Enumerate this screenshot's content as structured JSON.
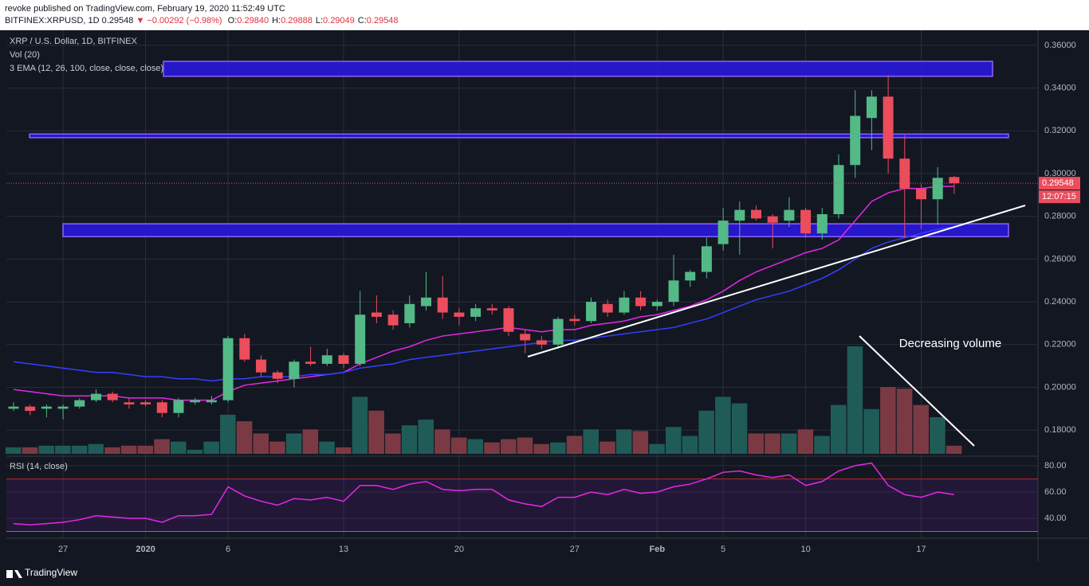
{
  "header": {
    "line1": "revoke published on TradingView.com, February 19, 2020 11:52:49 UTC",
    "symbol": "BITFINEX:XRPUSD, 1D",
    "last": "0.29548",
    "change": "▼ −0.00292 (−0.98%)",
    "ohlc": [
      {
        "key": "O:",
        "value": "0.29840"
      },
      {
        "key": "H:",
        "value": "0.29888"
      },
      {
        "key": "L:",
        "value": "0.29049"
      },
      {
        "key": "C:",
        "value": "0.29548"
      }
    ]
  },
  "chart_data": [
    {
      "type": "candlestick",
      "title": "XRP / U.S. Dollar, 1D, BITFINEX",
      "legend": [
        "Vol (20)",
        "3 EMA (12, 26, 100, close, close, close)"
      ],
      "categories": [
        null,
        null,
        null,
        "27",
        null,
        null,
        null,
        null,
        "2020",
        null,
        null,
        null,
        null,
        "6",
        null,
        null,
        null,
        null,
        null,
        null,
        "13",
        null,
        null,
        null,
        null,
        null,
        null,
        "20",
        null,
        null,
        null,
        null,
        null,
        null,
        "27",
        null,
        null,
        null,
        null,
        "Feb",
        null,
        null,
        null,
        "5",
        null,
        null,
        null,
        null,
        "10",
        null,
        null,
        null,
        null,
        null,
        null,
        "17",
        null,
        null
      ],
      "open": [
        0.19,
        0.191,
        0.19,
        0.19,
        0.191,
        0.194,
        0.197,
        0.193,
        0.193,
        0.193,
        0.188,
        0.193,
        0.193,
        0.194,
        0.223,
        0.213,
        0.207,
        0.204,
        0.212,
        0.211,
        0.215,
        0.211,
        0.235,
        0.234,
        0.23,
        0.238,
        0.242,
        0.235,
        0.233,
        0.237,
        0.237,
        0.225,
        0.222,
        0.22,
        0.232,
        0.231,
        0.239,
        0.235,
        0.242,
        0.238,
        0.24,
        0.25,
        0.254,
        0.267,
        0.278,
        0.283,
        0.28,
        0.278,
        0.283,
        0.272,
        0.281,
        0.304,
        0.326,
        0.336,
        0.307,
        0.293,
        0.288,
        0.2984
      ],
      "high": [
        0.193,
        0.192,
        0.192,
        0.192,
        0.195,
        0.199,
        0.198,
        0.195,
        0.194,
        0.194,
        0.195,
        0.195,
        0.196,
        0.224,
        0.225,
        0.215,
        0.208,
        0.213,
        0.219,
        0.218,
        0.216,
        0.245,
        0.243,
        0.236,
        0.243,
        0.254,
        0.252,
        0.237,
        0.239,
        0.239,
        0.238,
        0.227,
        0.224,
        0.233,
        0.234,
        0.242,
        0.241,
        0.245,
        0.245,
        0.241,
        0.262,
        0.255,
        0.27,
        0.284,
        0.287,
        0.285,
        0.281,
        0.289,
        0.284,
        0.284,
        0.309,
        0.339,
        0.339,
        0.346,
        0.318,
        0.295,
        0.303,
        0.29888
      ],
      "low": [
        0.189,
        0.187,
        0.186,
        0.185,
        0.19,
        0.193,
        0.193,
        0.19,
        0.191,
        0.186,
        0.186,
        0.192,
        0.192,
        0.193,
        0.212,
        0.205,
        0.202,
        0.2,
        0.21,
        0.21,
        0.209,
        0.21,
        0.23,
        0.227,
        0.228,
        0.236,
        0.232,
        0.229,
        0.231,
        0.234,
        0.224,
        0.216,
        0.218,
        0.218,
        0.229,
        0.23,
        0.233,
        0.234,
        0.236,
        0.236,
        0.238,
        0.247,
        0.251,
        0.264,
        0.262,
        0.278,
        0.265,
        0.275,
        0.27,
        0.269,
        0.279,
        0.298,
        0.311,
        0.3,
        0.27,
        0.274,
        0.276,
        0.29049
      ],
      "close": [
        0.191,
        0.189,
        0.191,
        0.191,
        0.194,
        0.197,
        0.194,
        0.192,
        0.192,
        0.188,
        0.194,
        0.194,
        0.194,
        0.223,
        0.213,
        0.207,
        0.204,
        0.212,
        0.211,
        0.215,
        0.211,
        0.234,
        0.233,
        0.229,
        0.239,
        0.242,
        0.235,
        0.233,
        0.237,
        0.236,
        0.226,
        0.222,
        0.22,
        0.232,
        0.231,
        0.24,
        0.235,
        0.242,
        0.238,
        0.24,
        0.25,
        0.254,
        0.266,
        0.278,
        0.283,
        0.279,
        0.277,
        0.283,
        0.272,
        0.281,
        0.304,
        0.327,
        0.336,
        0.307,
        0.293,
        0.288,
        0.298,
        0.29548
      ],
      "up_color": "#53b987",
      "down_color": "#eb4d5c",
      "series": [
        {
          "name": "EMA 12",
          "color": "#e528e6",
          "values": [
            0.199,
            0.198,
            0.197,
            0.196,
            0.196,
            0.196,
            0.196,
            0.195,
            0.195,
            0.195,
            0.194,
            0.194,
            0.194,
            0.198,
            0.201,
            0.202,
            0.203,
            0.204,
            0.205,
            0.206,
            0.207,
            0.211,
            0.214,
            0.217,
            0.219,
            0.222,
            0.224,
            0.225,
            0.226,
            0.227,
            0.228,
            0.227,
            0.226,
            0.227,
            0.227,
            0.229,
            0.23,
            0.231,
            0.233,
            0.234,
            0.236,
            0.238,
            0.241,
            0.245,
            0.25,
            0.254,
            0.257,
            0.26,
            0.263,
            0.265,
            0.269,
            0.278,
            0.287,
            0.291,
            0.293,
            0.293,
            0.294,
            0.294
          ]
        },
        {
          "name": "EMA 26",
          "color": "#3340ff",
          "values": [
            0.212,
            0.211,
            0.21,
            0.209,
            0.208,
            0.207,
            0.207,
            0.206,
            0.205,
            0.205,
            0.204,
            0.204,
            0.203,
            0.204,
            0.204,
            0.205,
            0.205,
            0.205,
            0.206,
            0.206,
            0.207,
            0.209,
            0.21,
            0.211,
            0.213,
            0.214,
            0.215,
            0.216,
            0.217,
            0.218,
            0.219,
            0.22,
            0.221,
            0.222,
            0.222,
            0.223,
            0.224,
            0.225,
            0.226,
            0.227,
            0.228,
            0.23,
            0.232,
            0.235,
            0.238,
            0.241,
            0.243,
            0.245,
            0.248,
            0.251,
            0.255,
            0.26,
            0.265,
            0.268,
            0.27,
            0.272,
            0.274,
            0.275
          ]
        }
      ],
      "zones": [
        [
          0.3455,
          0.3525
        ],
        [
          0.3168,
          0.3185
        ],
        [
          0.2705,
          0.2765
        ]
      ],
      "zone_color": "#2a17e6",
      "ylim": [
        0.1689,
        0.3663
      ],
      "yticks": [
        {
          "value": 0.18,
          "label": "0.18000"
        },
        {
          "value": 0.2,
          "label": "0.20000"
        },
        {
          "value": 0.22,
          "label": "0.22000"
        },
        {
          "value": 0.24,
          "label": "0.24000"
        },
        {
          "value": 0.26,
          "label": "0.26000"
        },
        {
          "value": 0.28,
          "label": "0.28000"
        },
        {
          "value": 0.3,
          "label": "0.30000"
        },
        {
          "value": 0.32,
          "label": "0.32000"
        },
        {
          "value": 0.34,
          "label": "0.34000"
        },
        {
          "value": 0.36,
          "label": "0.36000"
        }
      ],
      "countdown": "12:07:15",
      "grid": true
    },
    {
      "type": "bar",
      "title": "Vol (20)",
      "values": [
        8,
        8,
        10,
        10,
        10,
        12,
        8,
        10,
        10,
        18,
        15,
        5,
        15,
        48,
        40,
        25,
        15,
        25,
        30,
        15,
        8,
        70,
        53,
        25,
        35,
        42,
        30,
        20,
        18,
        14,
        18,
        20,
        12,
        14,
        22,
        30,
        15,
        30,
        28,
        12,
        33,
        22,
        53,
        70,
        62,
        25,
        25,
        25,
        30,
        22,
        60,
        132,
        55,
        82,
        80,
        60,
        45,
        10
      ],
      "up_color": "#1f5c57",
      "down_color": "#7b3a43",
      "annotation": "Decreasing volume"
    },
    {
      "type": "line",
      "title": "RSI (14, close)",
      "color": "#e528e6",
      "values": [
        36,
        35,
        36,
        37,
        39,
        42,
        41,
        40,
        40,
        37,
        42,
        42,
        43,
        64,
        57,
        53,
        50,
        55,
        54,
        56,
        53,
        65,
        65,
        62,
        66,
        68,
        62,
        61,
        62,
        62,
        54,
        51,
        49,
        56,
        56,
        60,
        58,
        62,
        59,
        60,
        64,
        66,
        70,
        75,
        76,
        73,
        71,
        73,
        65,
        68,
        76,
        80,
        82,
        65,
        58,
        56,
        60,
        58
      ],
      "bands": [
        70,
        30
      ],
      "band_colors": [
        "#b22833",
        "#2ea84a"
      ],
      "ylim": [
        25.5,
        86
      ],
      "yticks": [
        {
          "value": 40,
          "label": "40.00"
        },
        {
          "value": 60,
          "label": "60.00"
        },
        {
          "value": 80,
          "label": "80.00"
        }
      ]
    }
  ],
  "footer": "TradingView"
}
